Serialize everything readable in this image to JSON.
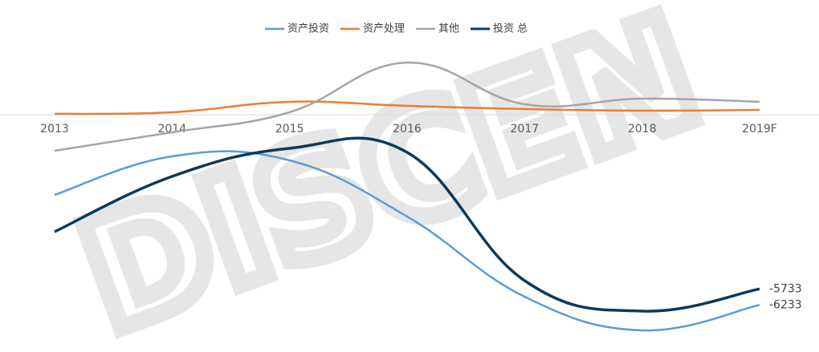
{
  "chart_data": {
    "type": "line",
    "watermark": "DISCEN",
    "categories": [
      "2013",
      "2014",
      "2015",
      "2016",
      "2017",
      "2018",
      "2019F"
    ],
    "series": [
      {
        "name": "资产投资",
        "color": "#5b9bd5",
        "values": [
          -2800,
          -1600,
          -1725,
          -3475,
          -5975,
          -7025,
          -6233
        ]
      },
      {
        "name": "资产处理",
        "color": "#ed7d31",
        "values": [
          -275,
          -225,
          100,
          -25,
          -125,
          -175,
          -150
        ]
      },
      {
        "name": "其他",
        "color": "#a5a5a5",
        "values": [
          -1425,
          -850,
          -225,
          1325,
          25,
          200,
          100
        ]
      },
      {
        "name": "投资 总",
        "color": "#0d3a5c",
        "values": [
          -3950,
          -2225,
          -1350,
          -1475,
          -5475,
          -6425,
          -5733
        ]
      }
    ],
    "ylim": [
      -7225,
      1775
    ],
    "end_labels": [
      3,
      0
    ],
    "legend": "top"
  }
}
